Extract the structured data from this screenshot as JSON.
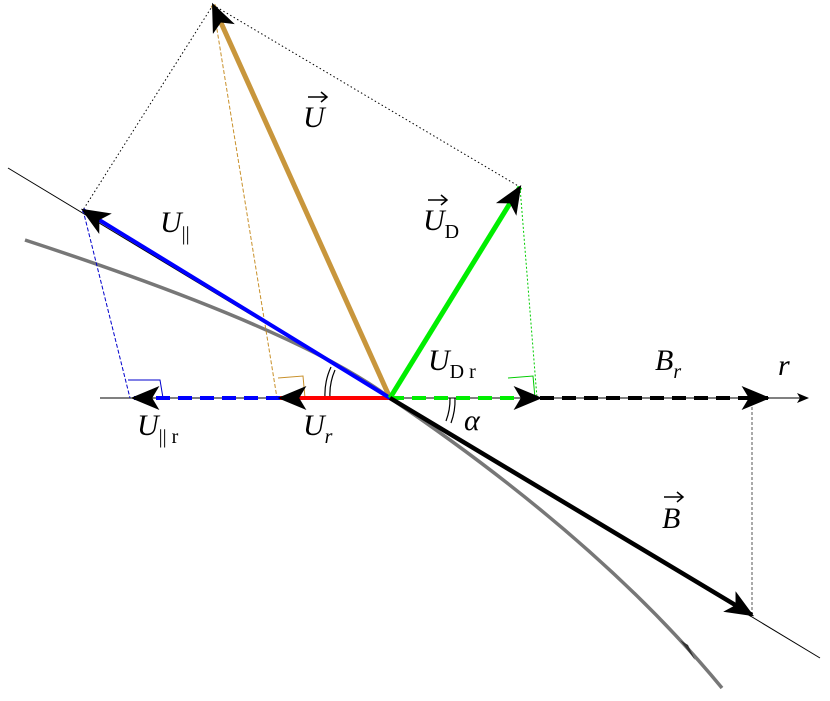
{
  "labels": [
    {
      "symbol": "U"
    },
    {
      "symbol": "U",
      "subscript": "||"
    },
    {
      "symbol": "U",
      "subscript": "D"
    },
    {
      "symbol": "U",
      "subscript": "D r"
    },
    {
      "symbol": "B",
      "subscript": "r"
    },
    {
      "symbol": "r"
    },
    {
      "symbol": "U",
      "subscript": "|| r"
    },
    {
      "symbol": "U",
      "subscript": "r"
    },
    {
      "symbol": "α"
    },
    {
      "symbol": "B"
    }
  ]
}
